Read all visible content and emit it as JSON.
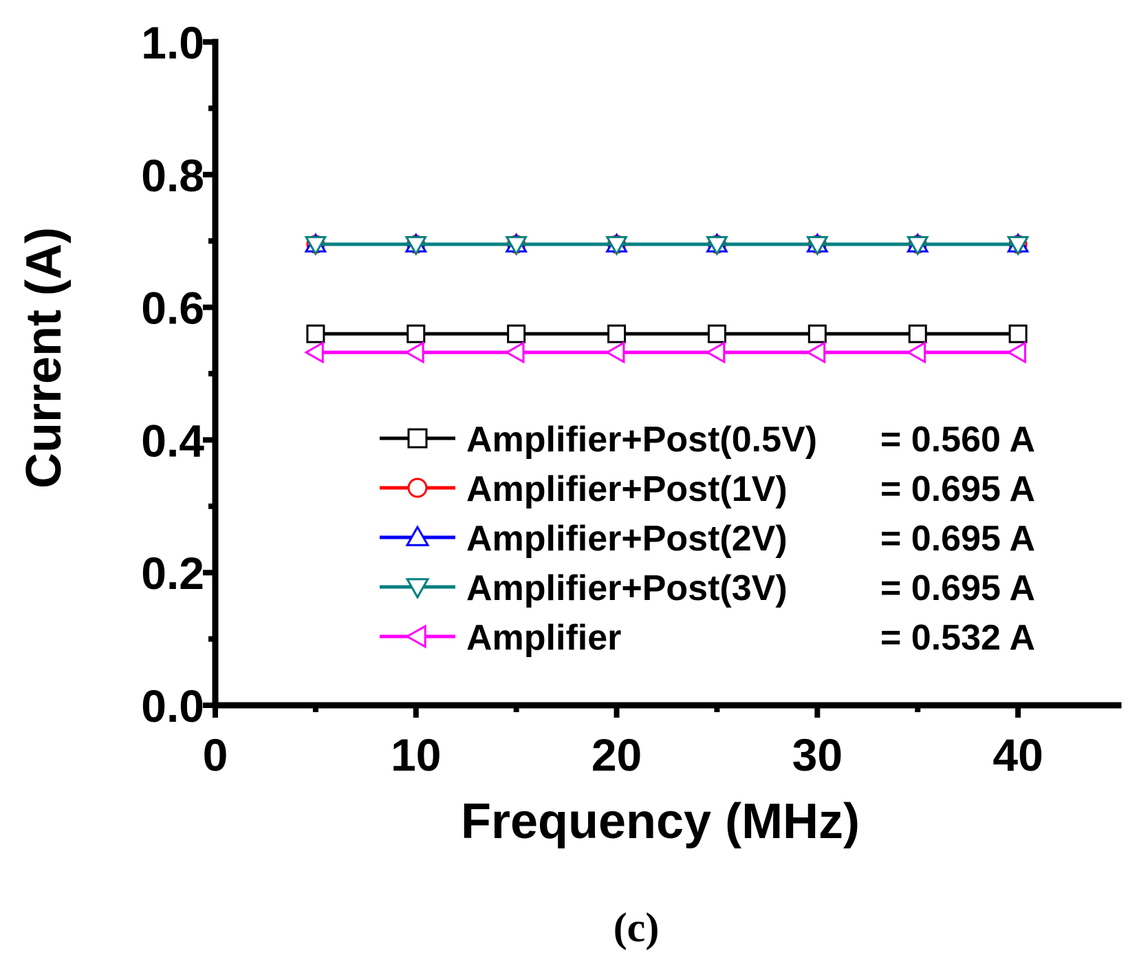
{
  "chart_data": {
    "type": "line",
    "title": "",
    "xlabel": "Frequency (MHz)",
    "ylabel": "Current (A)",
    "xlim": [
      0,
      45
    ],
    "ylim": [
      0.0,
      1.0
    ],
    "x_ticks": [
      0,
      10,
      20,
      30,
      40
    ],
    "x_tick_labels": [
      "0",
      "10",
      "20",
      "30",
      "40"
    ],
    "y_ticks": [
      0.0,
      0.2,
      0.4,
      0.6,
      0.8,
      1.0
    ],
    "y_tick_labels": [
      "0.0",
      "0.2",
      "0.4",
      "0.6",
      "0.8",
      "1.0"
    ],
    "grid": false,
    "legend_position": "lower-right",
    "x": [
      5,
      10,
      15,
      20,
      25,
      30,
      35,
      40
    ],
    "series": [
      {
        "name": "Amplifier+Post(0.5V)",
        "legend_value": "= 0.560 A",
        "color": "#000000",
        "marker": "square",
        "values": [
          0.56,
          0.56,
          0.56,
          0.56,
          0.56,
          0.56,
          0.56,
          0.56
        ]
      },
      {
        "name": "Amplifier+Post(1V)",
        "legend_value": "= 0.695 A",
        "color": "#ff0000",
        "marker": "circle",
        "values": [
          0.695,
          0.695,
          0.695,
          0.695,
          0.695,
          0.695,
          0.695,
          0.695
        ]
      },
      {
        "name": "Amplifier+Post(2V)",
        "legend_value": "= 0.695 A",
        "color": "#0000ff",
        "marker": "triangle-up",
        "values": [
          0.695,
          0.695,
          0.695,
          0.695,
          0.695,
          0.695,
          0.695,
          0.695
        ]
      },
      {
        "name": "Amplifier+Post(3V)",
        "legend_value": "= 0.695 A",
        "color": "#008080",
        "marker": "triangle-down",
        "values": [
          0.695,
          0.695,
          0.695,
          0.695,
          0.695,
          0.695,
          0.695,
          0.695
        ]
      },
      {
        "name": "Amplifier",
        "legend_value": "= 0.532 A",
        "color": "#ff00ff",
        "marker": "triangle-left",
        "values": [
          0.532,
          0.532,
          0.532,
          0.532,
          0.532,
          0.532,
          0.532,
          0.532
        ]
      }
    ],
    "caption": "(c)"
  }
}
